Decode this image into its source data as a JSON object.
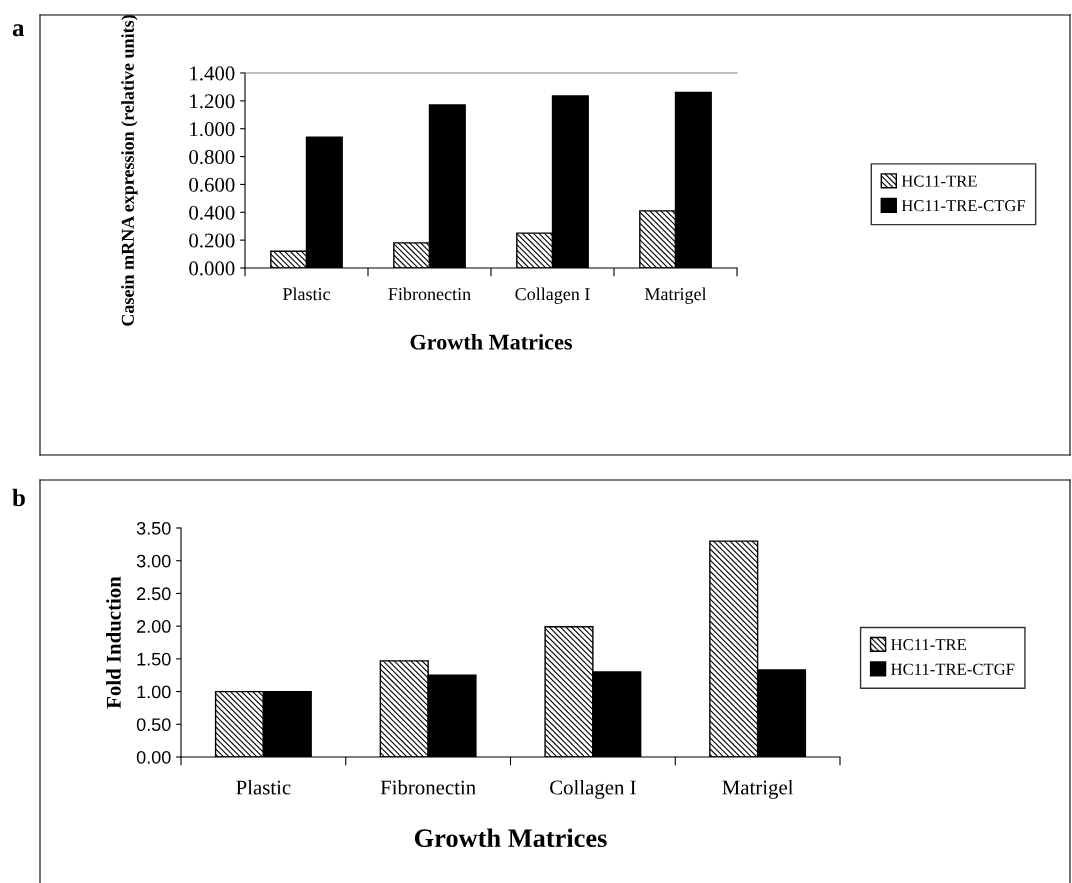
{
  "chart_data": [
    {
      "type": "bar",
      "xlabel": "Growth Matrices",
      "ylabel": "Casein mRNA expression (relative units)",
      "annotations": [
        "a"
      ],
      "categories": [
        "Plastic",
        "Fibronectin",
        "Collagen I",
        "Matrigel"
      ],
      "series": [
        {
          "name": "HC11-TRE",
          "color": "#000000",
          "values": [
            0.12,
            0.18,
            0.25,
            0.41
          ]
        },
        {
          "name": "HC11-TRE-CTGF",
          "color": "#000000",
          "values": [
            0.94,
            1.17,
            1.235,
            1.26
          ]
        }
      ],
      "ylim": [
        0,
        1.4
      ],
      "yticks": [
        {
          "value": 0,
          "label": "0.000"
        },
        {
          "value": 0.2,
          "label": "0.200"
        },
        {
          "value": 0.4,
          "label": "0.400"
        },
        {
          "value": 0.6,
          "label": "0.600"
        },
        {
          "value": 0.8,
          "label": "0.800"
        },
        {
          "value": 1.0,
          "label": "1.000"
        },
        {
          "value": 1.2,
          "label": "1.200"
        },
        {
          "value": 1.4,
          "label": "1.400"
        }
      ],
      "legend": "right",
      "grid": false
    },
    {
      "type": "bar",
      "xlabel": "Growth Matrices",
      "ylabel": "Fold Induction",
      "annotations": [
        "b"
      ],
      "categories": [
        "Plastic",
        "Fibronectin",
        "Collagen I",
        "Matrigel"
      ],
      "series": [
        {
          "name": "HC11-TRE",
          "color": "#000000",
          "values": [
            1.0,
            1.47,
            1.99,
            3.3
          ]
        },
        {
          "name": "HC11-TRE-CTGF",
          "color": "#000000",
          "values": [
            1.0,
            1.25,
            1.3,
            1.33
          ]
        }
      ],
      "ylim": [
        0,
        3.5
      ],
      "yticks": [
        {
          "value": 0,
          "label": "0.00"
        },
        {
          "value": 0.5,
          "label": "0.50"
        },
        {
          "value": 1.0,
          "label": "1.00"
        },
        {
          "value": 1.5,
          "label": "1.50"
        },
        {
          "value": 2.0,
          "label": "2.00"
        },
        {
          "value": 2.5,
          "label": "2.50"
        },
        {
          "value": 3.0,
          "label": "3.00"
        },
        {
          "value": 3.5,
          "label": "3.50"
        }
      ],
      "legend": "right",
      "grid": false
    }
  ]
}
